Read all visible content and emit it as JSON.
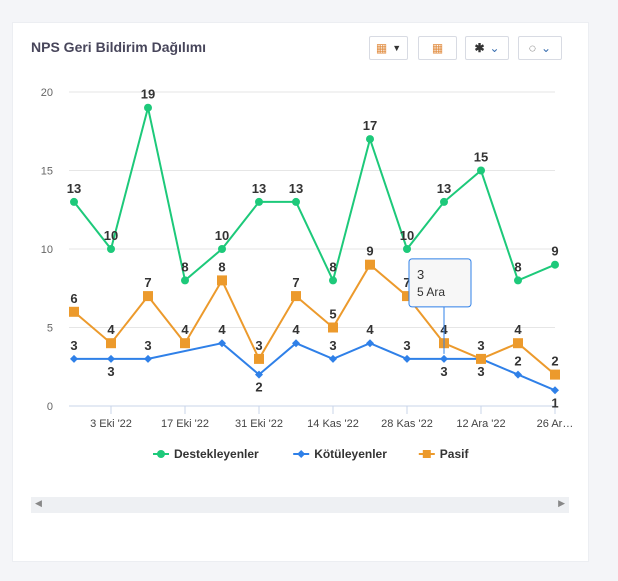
{
  "header": {
    "title": "NPS Geri Bildirim Dağılımı"
  },
  "toolbar": {
    "icons": [
      "calendar-dropdown-icon",
      "calendar-icon",
      "asterisk-dropdown-icon",
      "refresh-dropdown-icon"
    ]
  },
  "tooltip": {
    "value": "3",
    "date": "5 Ara"
  },
  "chart_data": {
    "type": "line",
    "title": "NPS Geri Bildirim Dağılımı",
    "ylim": [
      0,
      20
    ],
    "yticks": [
      0,
      5,
      10,
      15,
      20
    ],
    "xtick_labels": [
      {
        "index": 1,
        "label": "3 Eki '22"
      },
      {
        "index": 3,
        "label": "17 Eki '22"
      },
      {
        "index": 5,
        "label": "31 Eki '22"
      },
      {
        "index": 7,
        "label": "14 Kas '22"
      },
      {
        "index": 9,
        "label": "28 Kas '22"
      },
      {
        "index": 11,
        "label": "12 Ara '22"
      },
      {
        "index": 13,
        "label": "26 Ar…"
      }
    ],
    "legend_position": "bottom",
    "series": [
      {
        "name": "Destekleyenler",
        "color": "#1dc97a",
        "marker": "circle",
        "values": [
          13,
          10,
          19,
          8,
          10,
          13,
          13,
          8,
          17,
          10,
          13,
          15,
          8,
          9
        ]
      },
      {
        "name": "Kötüleyenler",
        "color": "#2f80e8",
        "marker": "diamond",
        "values": [
          3,
          3,
          3,
          null,
          4,
          2,
          4,
          3,
          4,
          3,
          3,
          3,
          2,
          1
        ]
      },
      {
        "name": "Pasif",
        "color": "#ec9a2c",
        "marker": "square",
        "values": [
          6,
          4,
          7,
          4,
          8,
          3,
          7,
          5,
          9,
          7,
          4,
          3,
          4,
          2
        ]
      }
    ]
  }
}
